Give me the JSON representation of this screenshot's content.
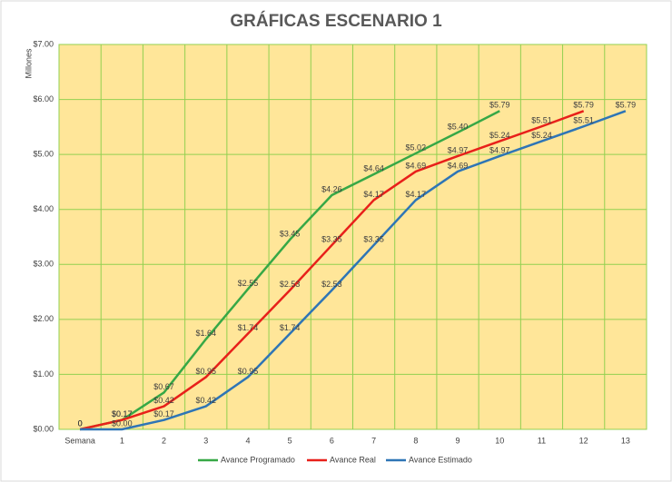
{
  "chart_data": {
    "type": "line",
    "title": "GRÁFICAS ESCENARIO 1",
    "y_label": "Millones",
    "categories": [
      "Semana",
      "1",
      "2",
      "3",
      "4",
      "5",
      "6",
      "7",
      "8",
      "9",
      "10",
      "11",
      "12",
      "13"
    ],
    "ylim": [
      0,
      7
    ],
    "yticks": [
      {
        "value": 0,
        "label": "$0.00"
      },
      {
        "value": 1,
        "label": "$1.00"
      },
      {
        "value": 2,
        "label": "$2.00"
      },
      {
        "value": 3,
        "label": "$3.00"
      },
      {
        "value": 4,
        "label": "$4.00"
      },
      {
        "value": 5,
        "label": "$5.00"
      },
      {
        "value": 6,
        "label": "$6.00"
      },
      {
        "value": 7,
        "label": "$7.00"
      }
    ],
    "grid": true,
    "legend": "bottom",
    "series": [
      {
        "name": "Avance Programado",
        "color": "#37a846",
        "values": [
          0,
          0.17,
          0.67,
          1.64,
          2.55,
          3.45,
          4.26,
          4.64,
          5.02,
          5.4,
          5.79,
          null,
          null,
          null
        ],
        "value_labels": [
          "0",
          "$0.17",
          "$0.67",
          "$1.64",
          "$2.55",
          "$3.45",
          "$4.26",
          "$4.64",
          "$5.02",
          "$5.40",
          "$5.79",
          null,
          null,
          null
        ]
      },
      {
        "name": "Avance Real",
        "color": "#e8201a",
        "values": [
          0,
          0.17,
          0.42,
          0.95,
          1.74,
          2.53,
          3.35,
          4.17,
          4.69,
          4.97,
          5.24,
          5.51,
          5.79,
          null
        ],
        "value_labels": [
          "0",
          "$0.17",
          "$0.42",
          "$0.95",
          "$1.74",
          "$2.53",
          "$3.35",
          "$4.17",
          "$4.69",
          "$4.97",
          "$5.24",
          "$5.51",
          "$5.79",
          null
        ]
      },
      {
        "name": "Avance Estimado",
        "color": "#2e75b6",
        "values": [
          0,
          0.0,
          0.17,
          0.42,
          0.95,
          1.74,
          2.53,
          3.35,
          4.17,
          4.69,
          4.97,
          5.24,
          5.51,
          5.79
        ],
        "value_labels": [
          "0",
          "$0.00",
          "$0.17",
          "$0.42",
          "$0.95",
          "$1.74",
          "$2.53",
          "$3.35",
          "$4.17",
          "$4.69",
          "$4.97",
          "$5.24",
          "$5.51",
          "$5.79"
        ]
      }
    ]
  }
}
